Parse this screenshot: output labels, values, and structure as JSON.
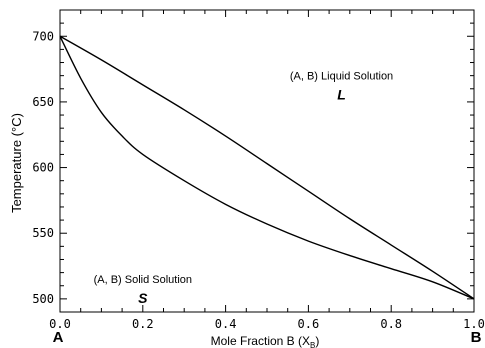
{
  "chart_data": {
    "type": "line",
    "title": "",
    "xlabel_prefix": "Mole Fraction B (X",
    "xlabel_sub": "B",
    "xlabel_suffix": ")",
    "ylabel": "Temperature  (°C)",
    "xlim": [
      0.0,
      1.0
    ],
    "ylim": [
      490,
      720
    ],
    "x_ticks": [
      "0.0",
      "0.2",
      "0.4",
      "0.6",
      "0.8",
      "1.0"
    ],
    "y_ticks": [
      "500",
      "550",
      "600",
      "650",
      "700"
    ],
    "x_tick_values": [
      0.0,
      0.2,
      0.4,
      0.6,
      0.8,
      1.0
    ],
    "y_tick_values": [
      500,
      550,
      600,
      650,
      700
    ],
    "endpoint_labels": {
      "left": "A",
      "right": "B"
    },
    "series": [
      {
        "x": [
          0.0,
          0.1,
          0.2,
          0.3,
          0.4,
          0.5,
          0.6,
          0.7,
          0.8,
          0.9,
          1.0
        ],
        "y": [
          700,
          682,
          663,
          644,
          624,
          603,
          582,
          561,
          541,
          521,
          500
        ]
      },
      {
        "x": [
          0.0,
          0.05,
          0.1,
          0.15,
          0.2,
          0.3,
          0.4,
          0.5,
          0.6,
          0.7,
          0.8,
          0.9,
          1.0
        ],
        "y": [
          700,
          668,
          642,
          624,
          610,
          590,
          572,
          557,
          544,
          533,
          523,
          513,
          500
        ]
      }
    ],
    "annotations": [
      {
        "text": "(A, B) Liquid Solution",
        "x": 0.68,
        "y": 667
      },
      {
        "text": "L",
        "x": 0.68,
        "y": 652,
        "style": "bold-italic"
      },
      {
        "text": "(A, B) Solid Solution",
        "x": 0.2,
        "y": 512
      },
      {
        "text": "S",
        "x": 0.2,
        "y": 497,
        "style": "bold-italic"
      }
    ],
    "grid": false,
    "line_color": "#000000"
  }
}
